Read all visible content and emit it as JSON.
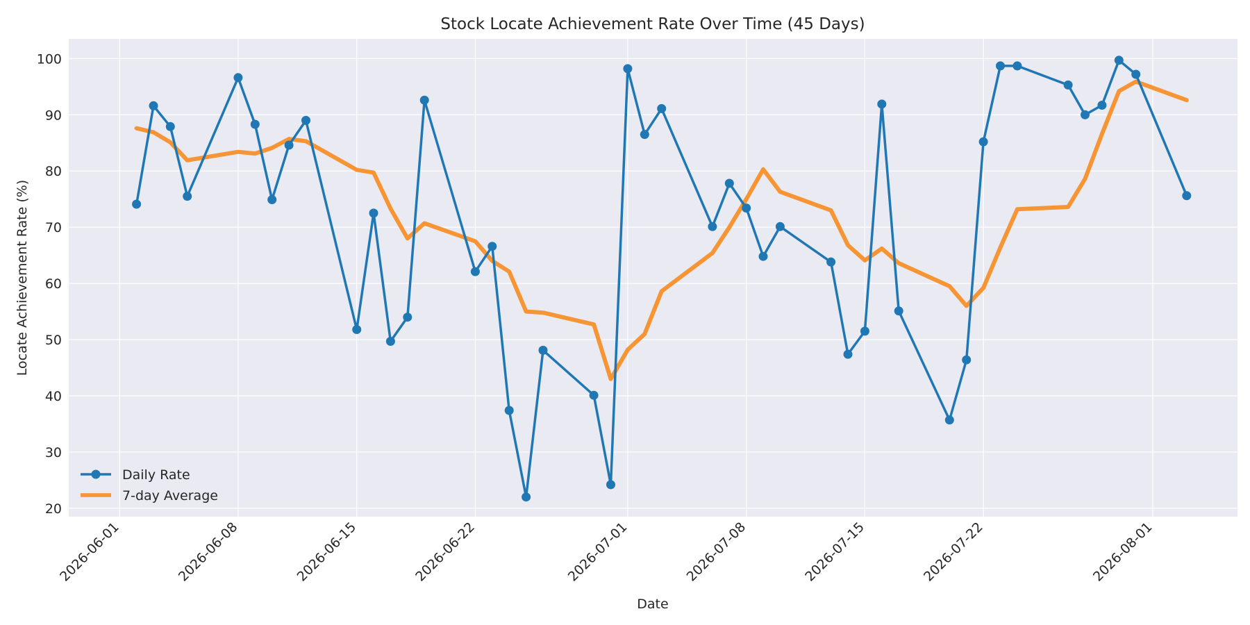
{
  "chart_data": {
    "type": "line",
    "title": "Stock Locate Achievement Rate Over Time (45 Days)",
    "xlabel": "Date",
    "ylabel": "Locate Achievement Rate (%)",
    "ylim": [
      18.5,
      103.5
    ],
    "xlim": [
      "2026-05-29",
      "2026-08-06"
    ],
    "yticks": [
      20,
      30,
      40,
      50,
      60,
      70,
      80,
      90,
      100
    ],
    "xticks": [
      "2026-06-01",
      "2026-06-08",
      "2026-06-15",
      "2026-06-22",
      "2026-07-01",
      "2026-07-08",
      "2026-07-15",
      "2026-07-22",
      "2026-08-01"
    ],
    "grid": true,
    "legend_position": "lower-left",
    "x": [
      "2026-06-02",
      "2026-06-03",
      "2026-06-04",
      "2026-06-05",
      "2026-06-08",
      "2026-06-09",
      "2026-06-10",
      "2026-06-11",
      "2026-06-12",
      "2026-06-15",
      "2026-06-16",
      "2026-06-17",
      "2026-06-18",
      "2026-06-19",
      "2026-06-22",
      "2026-06-23",
      "2026-06-24",
      "2026-06-25",
      "2026-06-26",
      "2026-06-29",
      "2026-06-30",
      "2026-07-01",
      "2026-07-02",
      "2026-07-03",
      "2026-07-06",
      "2026-07-07",
      "2026-07-08",
      "2026-07-09",
      "2026-07-10",
      "2026-07-13",
      "2026-07-14",
      "2026-07-15",
      "2026-07-16",
      "2026-07-17",
      "2026-07-20",
      "2026-07-21",
      "2026-07-22",
      "2026-07-23",
      "2026-07-24",
      "2026-07-27",
      "2026-07-28",
      "2026-07-29",
      "2026-07-30",
      "2026-07-31",
      "2026-08-03"
    ],
    "series": [
      {
        "name": "Daily Rate",
        "color": "#1f77b4",
        "marker": "circle",
        "values": [
          74.1,
          91.6,
          87.9,
          75.5,
          96.6,
          88.3,
          74.9,
          84.6,
          89.0,
          51.8,
          72.5,
          49.7,
          54.0,
          92.6,
          62.1,
          66.6,
          37.4,
          22.0,
          48.1,
          40.1,
          24.2,
          98.2,
          86.5,
          91.1,
          70.1,
          77.8,
          73.4,
          64.8,
          70.1,
          63.8,
          47.4,
          51.5,
          91.9,
          55.1,
          35.7,
          46.4,
          85.2,
          98.7,
          98.7,
          95.3,
          90.0,
          91.7,
          99.7,
          97.2,
          75.6
        ]
      },
      {
        "name": "7-day Average",
        "color": "#f79433",
        "marker": "none",
        "values": [
          87.6,
          86.9,
          85.1,
          81.9,
          83.4,
          83.1,
          84.1,
          85.7,
          85.3,
          80.2,
          79.7,
          73.3,
          68.0,
          70.7,
          67.5,
          64.0,
          62.1,
          55.0,
          54.8,
          52.7,
          43.0,
          48.2,
          51.0,
          58.6,
          65.4,
          70.0,
          75.0,
          80.3,
          76.3,
          73.0,
          66.8,
          64.1,
          66.2,
          63.6,
          59.5,
          56.0,
          59.2,
          66.4,
          73.2,
          73.6,
          78.6,
          86.6,
          94.2,
          95.9,
          92.6
        ]
      }
    ]
  }
}
